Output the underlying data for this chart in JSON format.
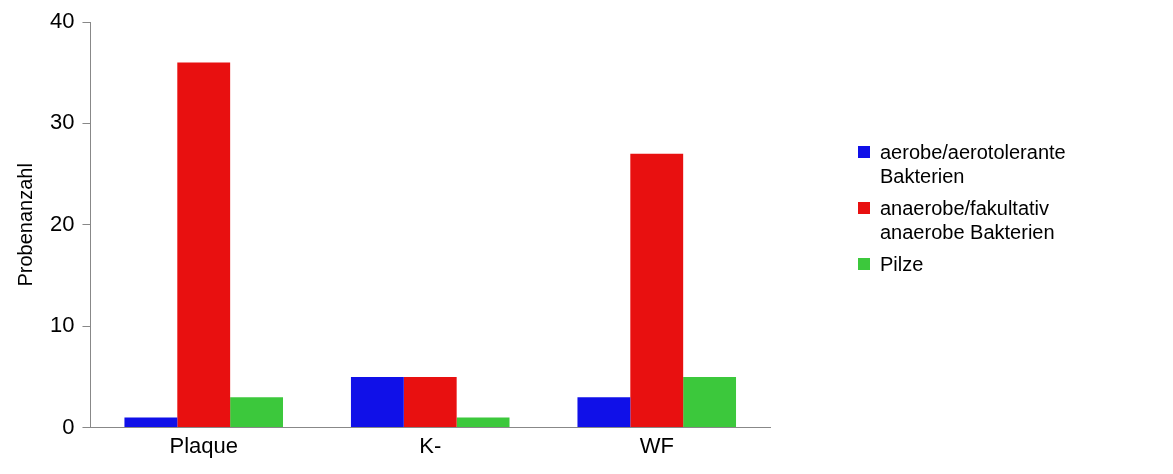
{
  "chart_data": {
    "type": "bar",
    "ylabel": "Probenanzahl",
    "categories": [
      "Plaque",
      "K-",
      "WF"
    ],
    "series": [
      {
        "name": "aerobe/aerotolerante Bakterien",
        "color": "#1010e8",
        "values": [
          1,
          5,
          3
        ]
      },
      {
        "name": "anaerobe/fakultativ anaerobe Bakterien",
        "color": "#e81010",
        "values": [
          36,
          5,
          27
        ]
      },
      {
        "name": "Pilze",
        "color": "#3cc83c",
        "values": [
          3,
          1,
          5
        ]
      }
    ],
    "ylim": [
      0,
      40
    ],
    "yticks": [
      0,
      10,
      20,
      30,
      40
    ],
    "grid": false,
    "legend": "right"
  }
}
